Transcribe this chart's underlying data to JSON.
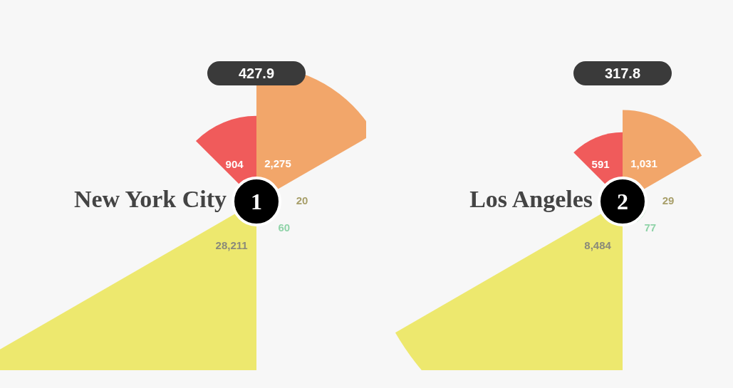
{
  "chart_data": [
    {
      "type": "other",
      "title": "New York City",
      "categories": [
        null,
        null,
        null,
        null,
        null
      ],
      "values": [
        904,
        2275,
        20,
        60,
        28211
      ],
      "value_labels": [
        "904",
        "2,275",
        "20",
        "60",
        "28,211"
      ],
      "colors": [
        "#f05b5b",
        "#f2a66a",
        "#a89f6a",
        "#8fd3a8",
        "#ede86e"
      ],
      "annotations": [
        "427.9",
        "1"
      ]
    },
    {
      "type": "other",
      "title": "Los Angeles",
      "categories": [
        null,
        null,
        null,
        null,
        null
      ],
      "values": [
        591,
        1031,
        29,
        77,
        8484
      ],
      "value_labels": [
        "591",
        "1,031",
        "29",
        "77",
        "8,484"
      ],
      "colors": [
        "#f05b5b",
        "#f2a66a",
        "#a89f6a",
        "#8fd3a8",
        "#ede86e"
      ],
      "annotations": [
        "317.8",
        "2"
      ]
    }
  ]
}
